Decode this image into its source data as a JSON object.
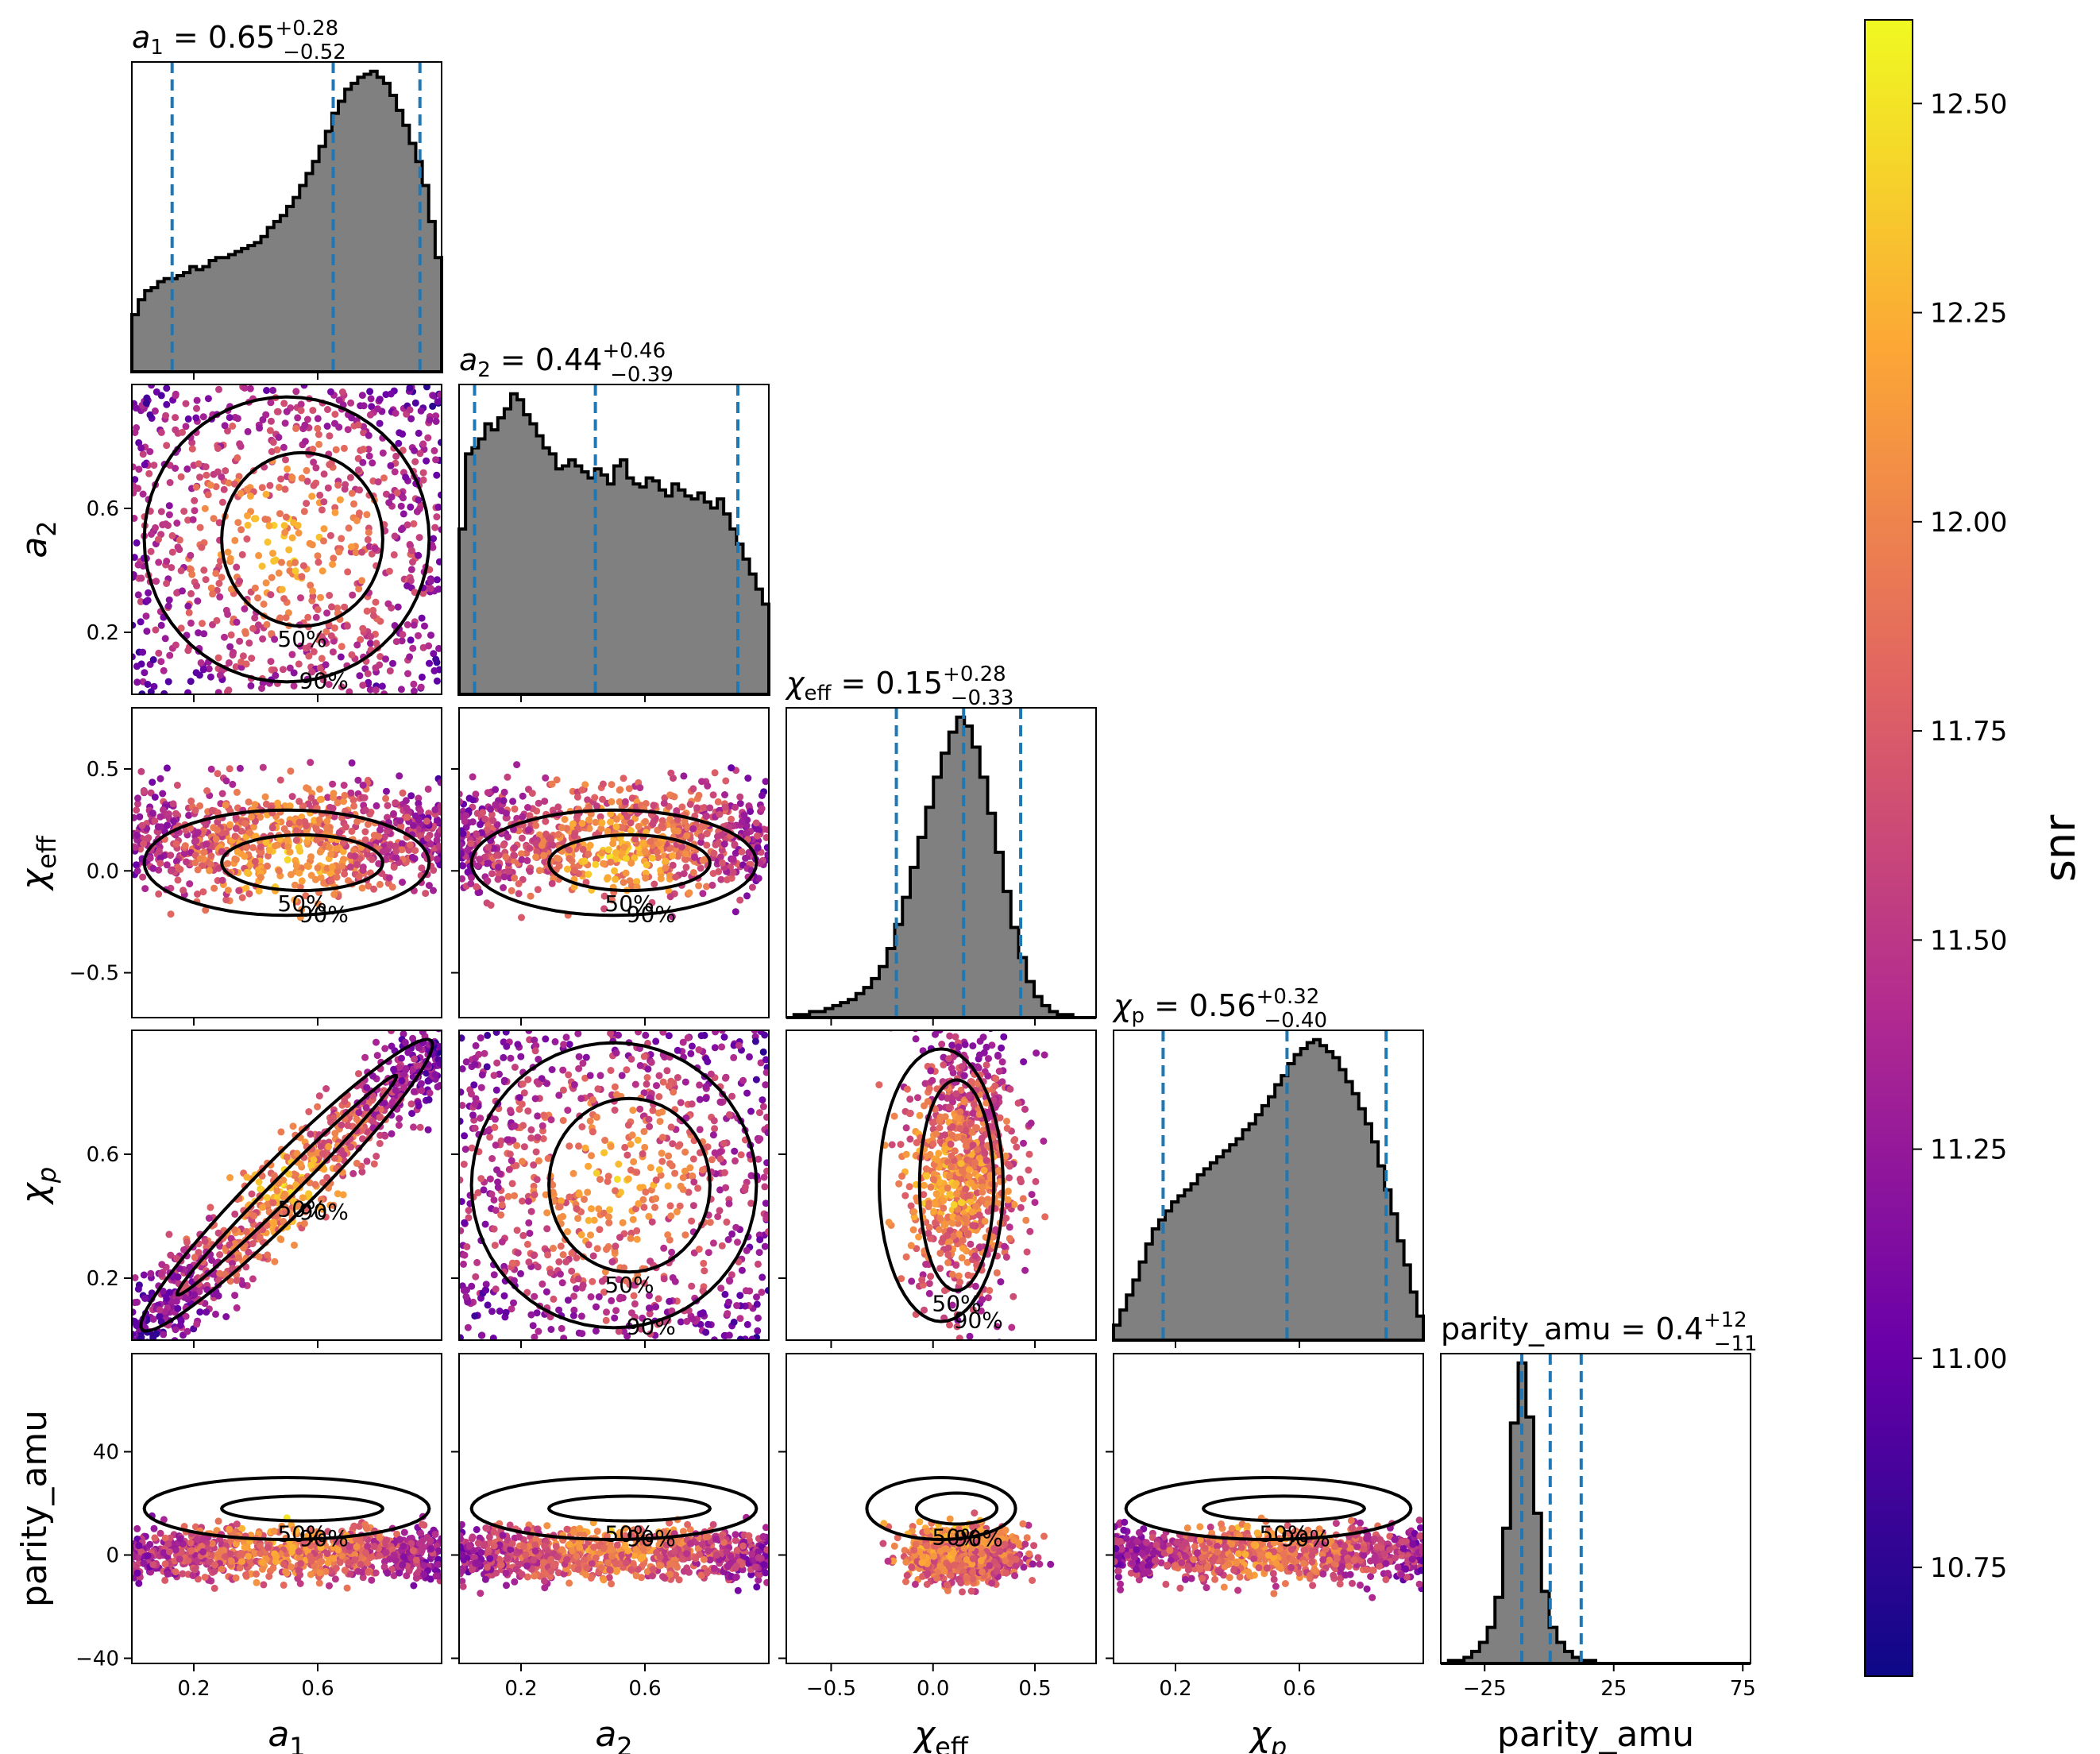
{
  "chart_data": {
    "type": "corner",
    "colorbar": {
      "label": "snr",
      "range": [
        10.62,
        12.6
      ],
      "ticks": [
        "10.75",
        "11.00",
        "11.25",
        "11.50",
        "11.75",
        "12.00",
        "12.25",
        "12.50"
      ],
      "tick_values": [
        10.75,
        11.0,
        11.25,
        11.5,
        11.75,
        12.0,
        12.25,
        12.5
      ],
      "colormap": "plasma",
      "colormap_stops": [
        "#0d0887",
        "#6a00a8",
        "#b12a90",
        "#e16462",
        "#fca636",
        "#f0f921"
      ]
    },
    "parameters": [
      {
        "key": "a1",
        "axis_label": "a₁",
        "axis_main": "a",
        "axis_sub": "1",
        "title": "a₁ = 0.65 +0.28/−0.52",
        "title_sym": "a",
        "title_sub": "1",
        "title_value": "= 0.65",
        "title_plus": "+0.28",
        "title_minus": "−0.52",
        "range": [
          0.0,
          1.0
        ],
        "median": 0.65,
        "lower": 0.13,
        "upper": 0.93,
        "ticks": [
          "0.2",
          "0.6"
        ],
        "tick_values": [
          0.2,
          0.6
        ],
        "hist": [
          0.19,
          0.24,
          0.27,
          0.28,
          0.3,
          0.31,
          0.31,
          0.32,
          0.33,
          0.35,
          0.34,
          0.35,
          0.37,
          0.38,
          0.38,
          0.39,
          0.4,
          0.41,
          0.42,
          0.43,
          0.45,
          0.48,
          0.5,
          0.52,
          0.55,
          0.58,
          0.62,
          0.66,
          0.7,
          0.75,
          0.8,
          0.86,
          0.9,
          0.94,
          0.96,
          0.98,
          0.99,
          1.0,
          0.98,
          0.96,
          0.92,
          0.87,
          0.82,
          0.76,
          0.7,
          0.62,
          0.5,
          0.38
        ]
      },
      {
        "key": "a2",
        "axis_label": "a₂",
        "axis_main": "a",
        "axis_sub": "2",
        "title": "a₂ = 0.44 +0.46/−0.39",
        "title_sym": "a",
        "title_sub": "2",
        "title_value": "= 0.44",
        "title_plus": "+0.46",
        "title_minus": "−0.39",
        "range": [
          0.0,
          1.0
        ],
        "median": 0.44,
        "lower": 0.05,
        "upper": 0.9,
        "ticks": [
          "0.2",
          "0.6"
        ],
        "tick_values": [
          0.2,
          0.6
        ],
        "hist": [
          0.55,
          0.8,
          0.82,
          0.85,
          0.9,
          0.88,
          0.92,
          0.95,
          1.0,
          0.98,
          0.93,
          0.9,
          0.86,
          0.82,
          0.8,
          0.75,
          0.76,
          0.78,
          0.76,
          0.74,
          0.72,
          0.75,
          0.73,
          0.7,
          0.76,
          0.78,
          0.72,
          0.7,
          0.69,
          0.72,
          0.71,
          0.68,
          0.66,
          0.7,
          0.68,
          0.66,
          0.65,
          0.67,
          0.64,
          0.62,
          0.65,
          0.6,
          0.55,
          0.5,
          0.45,
          0.4,
          0.35,
          0.3
        ]
      },
      {
        "key": "chi_eff",
        "axis_label": "χ_eff",
        "axis_main": "χ",
        "axis_sub": "eff",
        "title": "χ_eff = 0.15 +0.28/−0.33",
        "title_sym": "χ",
        "title_sub": "eff",
        "title_value": "= 0.15",
        "title_plus": "+0.28",
        "title_minus": "−0.33",
        "range": [
          -0.72,
          0.8
        ],
        "median": 0.15,
        "lower": -0.18,
        "upper": 0.43,
        "ticks": [
          "−0.5",
          "0.0",
          "0.5"
        ],
        "tick_values": [
          -0.5,
          0.0,
          0.5
        ],
        "hist": [
          0.0,
          0.01,
          0.01,
          0.02,
          0.02,
          0.03,
          0.04,
          0.05,
          0.06,
          0.08,
          0.1,
          0.13,
          0.17,
          0.23,
          0.31,
          0.4,
          0.5,
          0.6,
          0.7,
          0.8,
          0.88,
          0.95,
          1.0,
          0.97,
          0.9,
          0.8,
          0.68,
          0.55,
          0.42,
          0.3,
          0.2,
          0.12,
          0.07,
          0.04,
          0.02,
          0.01,
          0.01,
          0.0,
          0.0,
          0.0
        ]
      },
      {
        "key": "chi_p",
        "axis_label": "χ_p",
        "axis_main": "χ",
        "axis_sub": "p",
        "title": "χ_p = 0.56 +0.32/−0.40",
        "title_sym": "χ",
        "title_sub": "p",
        "title_value": "= 0.56",
        "title_plus": "+0.32",
        "title_minus": "−0.40",
        "range": [
          0.0,
          1.0
        ],
        "median": 0.56,
        "lower": 0.16,
        "upper": 0.88,
        "ticks": [
          "0.2",
          "0.6"
        ],
        "tick_values": [
          0.2,
          0.6
        ],
        "hist": [
          0.05,
          0.1,
          0.15,
          0.2,
          0.26,
          0.32,
          0.37,
          0.4,
          0.43,
          0.46,
          0.48,
          0.5,
          0.52,
          0.55,
          0.57,
          0.59,
          0.61,
          0.63,
          0.65,
          0.67,
          0.7,
          0.72,
          0.75,
          0.78,
          0.81,
          0.85,
          0.88,
          0.92,
          0.95,
          0.97,
          0.99,
          1.0,
          0.98,
          0.96,
          0.94,
          0.9,
          0.86,
          0.82,
          0.77,
          0.72,
          0.66,
          0.58,
          0.5,
          0.42,
          0.33,
          0.25,
          0.16,
          0.08
        ]
      },
      {
        "key": "parity_amu",
        "axis_label": "parity_amu",
        "axis_main": "parity_amu",
        "axis_sub": "",
        "title": "parity_amu = 0.4 +12/−11",
        "title_sym": "parity_amu",
        "title_sub": "",
        "title_value": " = 0.4",
        "title_plus": "+12",
        "title_minus": "−11",
        "range": [
          -42,
          78
        ],
        "median": 0.4,
        "lower": -10.6,
        "upper": 12.4,
        "ticks": [
          "−25",
          "25",
          "75"
        ],
        "tick_values": [
          -25,
          25,
          75
        ],
        "yticks": [
          "−40",
          "0",
          "40"
        ],
        "ytick_values": [
          -40,
          0,
          40
        ],
        "hist": [
          0.0,
          0.01,
          0.01,
          0.02,
          0.04,
          0.07,
          0.12,
          0.22,
          0.45,
          0.8,
          1.0,
          0.82,
          0.5,
          0.24,
          0.12,
          0.07,
          0.04,
          0.02,
          0.01,
          0.01,
          0.0,
          0.0,
          0.0,
          0.0,
          0.0,
          0.0,
          0.0,
          0.0,
          0.0,
          0.0,
          0.0,
          0.0,
          0.0,
          0.0,
          0.0,
          0.0,
          0.0,
          0.0,
          0.0,
          0.0
        ]
      }
    ],
    "contour_labels": [
      "50%",
      "90%"
    ]
  }
}
